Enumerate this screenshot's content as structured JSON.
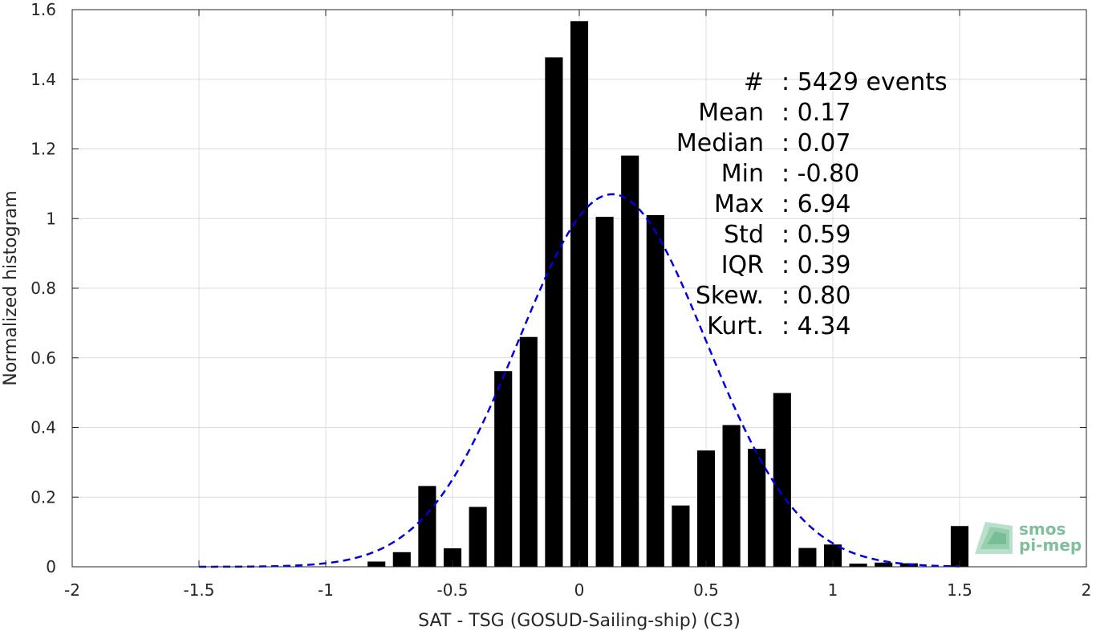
{
  "chart_data": {
    "type": "bar",
    "title": "",
    "xlabel": "SAT - TSG (GOSUD-Sailing-ship) (C3)",
    "ylabel": "Normalized histogram",
    "xlim": [
      -2,
      2
    ],
    "ylim": [
      0,
      1.6
    ],
    "grid": true,
    "x_ticks": [
      -2,
      -1.5,
      -1,
      -0.5,
      0,
      0.5,
      1,
      1.5,
      2
    ],
    "x_tick_labels": [
      "-2",
      "-1.5",
      "-1",
      "-0.5",
      "0",
      "0.5",
      "1",
      "1.5",
      "2"
    ],
    "y_ticks": [
      0,
      0.2,
      0.4,
      0.6,
      0.8,
      1,
      1.2,
      1.4,
      1.6
    ],
    "y_tick_labels": [
      "0",
      "0.2",
      "0.4",
      "0.6",
      "0.8",
      "1",
      "1.2",
      "1.4",
      "1.6"
    ],
    "bar_color": "#000000",
    "bar_width": 0.07,
    "bars": {
      "x": [
        -0.8,
        -0.7,
        -0.6,
        -0.5,
        -0.4,
        -0.3,
        -0.2,
        -0.1,
        0.0,
        0.1,
        0.2,
        0.3,
        0.4,
        0.5,
        0.6,
        0.7,
        0.8,
        0.9,
        1.0,
        1.1,
        1.2,
        1.3,
        1.5
      ],
      "values": [
        0.015,
        0.042,
        0.232,
        0.053,
        0.172,
        0.562,
        0.66,
        1.463,
        1.567,
        1.005,
        1.181,
        1.01,
        0.176,
        0.334,
        0.407,
        0.339,
        0.499,
        0.054,
        0.064,
        0.009,
        0.012,
        0.01,
        0.117
      ]
    },
    "fit_curve": {
      "type": "gaussian",
      "mean": 0.13,
      "std": 0.37,
      "peak": 1.07,
      "x_range": [
        -1.5,
        1.5
      ],
      "color": "#0000e0",
      "style": "dashed"
    },
    "stats": [
      {
        "label": "#  ",
        "value": "5429 events"
      },
      {
        "label": "Mean",
        "value": "0.17"
      },
      {
        "label": "Median",
        "value": "0.07"
      },
      {
        "label": "Min",
        "value": "-0.80"
      },
      {
        "label": "Max",
        "value": "6.94"
      },
      {
        "label": "Std",
        "value": "0.59"
      },
      {
        "label": "IQR",
        "value": "0.39"
      },
      {
        "label": "Skew.",
        "value": "0.80"
      },
      {
        "label": "Kurt.",
        "value": "4.34"
      }
    ],
    "logo": {
      "line1": "smos",
      "line2": "pi-mep",
      "color": "#7fbf9c"
    }
  }
}
